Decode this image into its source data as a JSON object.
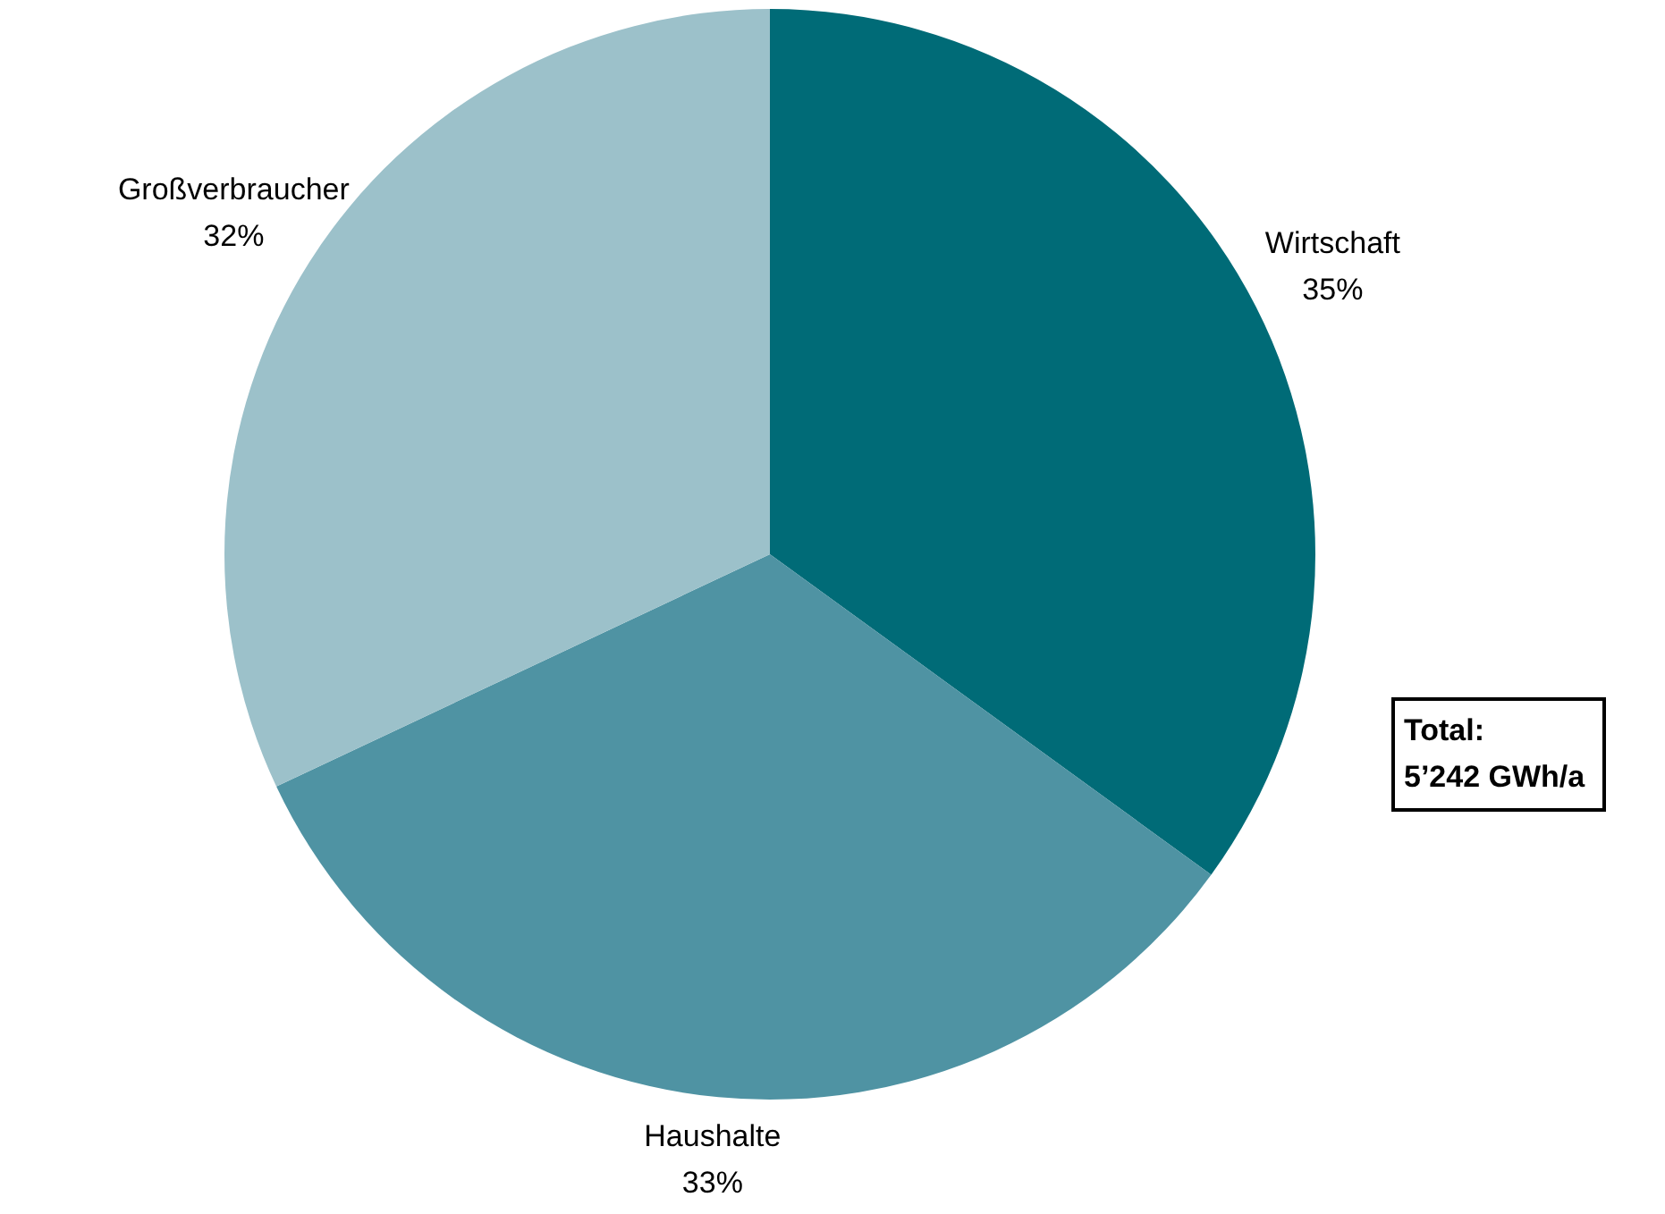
{
  "chart_data": {
    "type": "pie",
    "categories": [
      "Wirtschaft",
      "Haushalte",
      "Großverbraucher"
    ],
    "values": [
      35,
      33,
      32
    ],
    "value_labels": [
      "35%",
      "33%",
      "32%"
    ],
    "colors": [
      "#006b77",
      "#4f93a3",
      "#9cc1ca"
    ],
    "legend": false,
    "annotations": [
      "Total:\n5’242 GWh/a"
    ]
  }
}
